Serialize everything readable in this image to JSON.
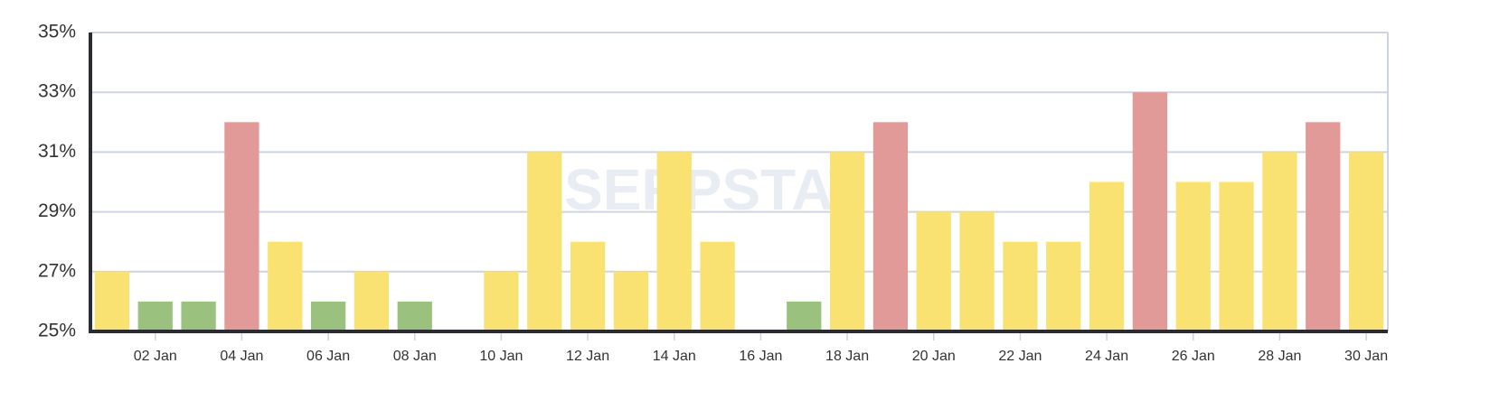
{
  "chart_data": {
    "type": "bar",
    "watermark": "SERPSTAT",
    "categories": [
      null,
      "02 Jan",
      null,
      "04 Jan",
      null,
      "06 Jan",
      null,
      "08 Jan",
      null,
      "10 Jan",
      null,
      "12 Jan",
      null,
      "14 Jan",
      null,
      "16 Jan",
      null,
      "18 Jan",
      null,
      "20 Jan",
      null,
      "22 Jan",
      null,
      "24 Jan",
      null,
      "26 Jan",
      null,
      "28 Jan",
      null,
      "30 Jan"
    ],
    "values": [
      27,
      26,
      26,
      32,
      28,
      26,
      27,
      26,
      null,
      27,
      31,
      28,
      27,
      31,
      28,
      null,
      26,
      31,
      32,
      29,
      29,
      28,
      28,
      30,
      33,
      30,
      30,
      31,
      32,
      31
    ],
    "colors": [
      "#f9e272",
      "#9bc17e",
      "#9bc17e",
      "#e19a98",
      "#f9e272",
      "#9bc17e",
      "#f9e272",
      "#9bc17e",
      null,
      "#f9e272",
      "#f9e272",
      "#f9e272",
      "#f9e272",
      "#f9e272",
      "#f9e272",
      null,
      "#9bc17e",
      "#f9e272",
      "#e19a98",
      "#f9e272",
      "#f9e272",
      "#f9e272",
      "#f9e272",
      "#f9e272",
      "#e19a98",
      "#f9e272",
      "#f9e272",
      "#f9e272",
      "#e19a98",
      "#f9e272"
    ],
    "ylim": [
      25,
      35
    ],
    "yticks": [
      {
        "value": 25,
        "label": "25%"
      },
      {
        "value": 27,
        "label": "27%"
      },
      {
        "value": 29,
        "label": "29%"
      },
      {
        "value": 31,
        "label": "31%"
      },
      {
        "value": 33,
        "label": "33%"
      },
      {
        "value": 35,
        "label": "35%"
      }
    ],
    "grid": true
  }
}
